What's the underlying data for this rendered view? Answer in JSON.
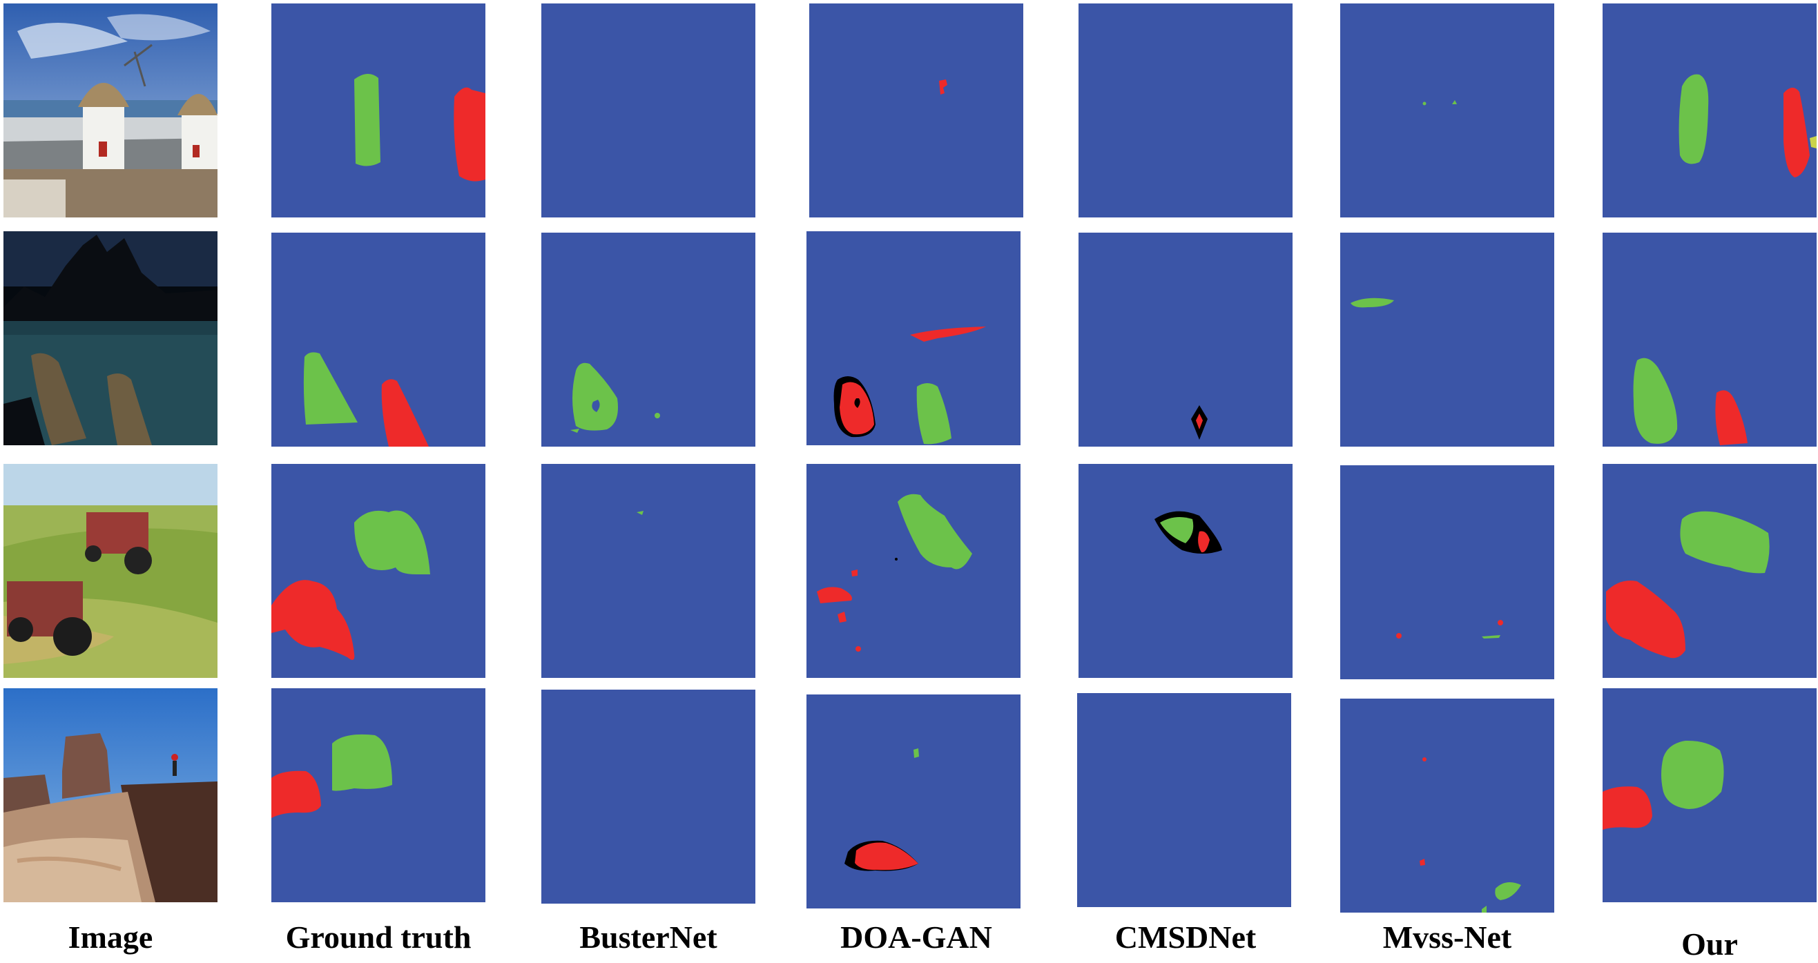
{
  "columns": [
    {
      "key": "image",
      "label": "Image"
    },
    {
      "key": "ground_truth",
      "label": "Ground truth"
    },
    {
      "key": "busternet",
      "label": "BusterNet"
    },
    {
      "key": "doa_gan",
      "label": "DOA-GAN"
    },
    {
      "key": "cmsdnet",
      "label": "CMSDNet"
    },
    {
      "key": "mvss_net",
      "label": "Mvss-Net"
    },
    {
      "key": "our",
      "label": "Our"
    }
  ],
  "rows": [
    {
      "scene": "windmills"
    },
    {
      "scene": "lake-with-boats"
    },
    {
      "scene": "tractors-on-field"
    },
    {
      "scene": "desert-mesas"
    }
  ],
  "colors": {
    "mask_background": "#3b55a7",
    "source_region": "#6cc24a",
    "target_region": "#ee2a2a",
    "false_detection": "#000000"
  }
}
